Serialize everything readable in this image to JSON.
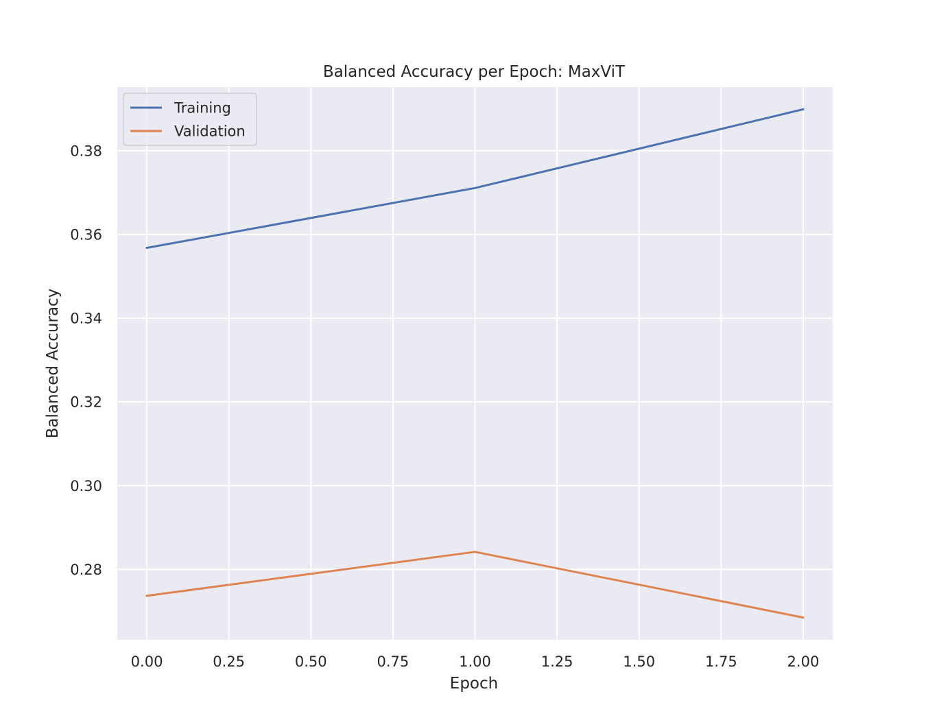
{
  "chart_data": {
    "type": "line",
    "title": "Balanced Accuracy per Epoch: MaxViT",
    "xlabel": "Epoch",
    "ylabel": "Balanced Accuracy",
    "x": [
      0,
      1,
      2
    ],
    "series": [
      {
        "name": "Training",
        "values": [
          0.3568,
          0.3711,
          0.3899
        ],
        "color": "#4c72b0"
      },
      {
        "name": "Validation",
        "values": [
          0.2737,
          0.2842,
          0.2685
        ],
        "color": "#dd8452"
      }
    ],
    "xlim": [
      -0.09,
      2.09
    ],
    "ylim": [
      0.2632,
      0.3952
    ],
    "xticks": [
      0,
      0.25,
      0.5,
      0.75,
      1,
      1.25,
      1.5,
      1.75,
      2
    ],
    "xtick_labels": [
      "0.00",
      "0.25",
      "0.50",
      "0.75",
      "1.00",
      "1.25",
      "1.50",
      "1.75",
      "2.00"
    ],
    "yticks": [
      0.28,
      0.3,
      0.32,
      0.34,
      0.36,
      0.38
    ],
    "ytick_labels": [
      "0.28",
      "0.30",
      "0.32",
      "0.34",
      "0.36",
      "0.38"
    ],
    "grid": true,
    "legend_position": "top-left",
    "background_color": "#eaeaf2",
    "grid_color": "#ffffff"
  }
}
